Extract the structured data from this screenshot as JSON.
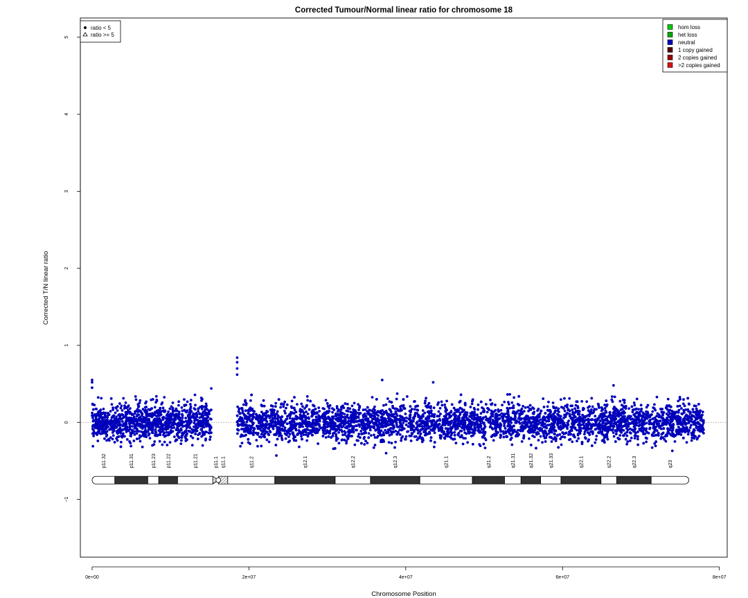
{
  "chart_data": {
    "type": "scatter",
    "title": "Corrected Tumour/Normal linear ratio for chromosome  18",
    "xlabel": "Chromosome Position",
    "ylabel": "Corrected T/N linear ratio",
    "xlim": [
      -1500000,
      81000000
    ],
    "ylim": [
      -1.75,
      5.25
    ],
    "x_ticks": [
      {
        "value": 0,
        "label": "0e+00"
      },
      {
        "value": 20000000,
        "label": "2e+07"
      },
      {
        "value": 40000000,
        "label": "4e+07"
      },
      {
        "value": 60000000,
        "label": "6e+07"
      },
      {
        "value": 80000000,
        "label": "8e+07"
      }
    ],
    "y_ticks": [
      {
        "value": -1,
        "label": "−1"
      },
      {
        "value": 0,
        "label": "0"
      },
      {
        "value": 1,
        "label": "1"
      },
      {
        "value": 2,
        "label": "2"
      },
      {
        "value": 3,
        "label": "3"
      },
      {
        "value": 4,
        "label": "4"
      },
      {
        "value": 5,
        "label": "5"
      }
    ],
    "reference_line": {
      "y": 0,
      "style": "dotted",
      "color": "#888888"
    },
    "colors": {
      "hom_loss": "#00cc00",
      "het_loss": "#00aa00",
      "neutral": "#0000bb",
      "copy1": "#550000",
      "copy2": "#990000",
      "copy3": "#dd1111"
    },
    "legend_shape": {
      "position": "top-left",
      "entries": [
        {
          "label": "ratio < 5",
          "marker": "dot"
        },
        {
          "label": "ratio >= 5",
          "marker": "triangle"
        }
      ]
    },
    "legend_state": {
      "position": "top-right",
      "entries": [
        {
          "label": "hom loss",
          "color": "#00cc00"
        },
        {
          "label": "het loss",
          "color": "#00aa00"
        },
        {
          "label": "neutral",
          "color": "#0000bb"
        },
        {
          "label": "1 copy gained",
          "color": "#550000"
        },
        {
          "label": "2 copies gained",
          "color": "#990000"
        },
        {
          "label": ">2 copies gained",
          "color": "#dd1111"
        }
      ]
    },
    "series": [
      {
        "state": "neutral",
        "color": "#0000bb",
        "segments": [
          {
            "start": 0,
            "end": 15200000,
            "mean": 0.0,
            "sd": 0.12
          },
          {
            "start": 18500000,
            "end": 78000000,
            "mean": 0.0,
            "sd": 0.12
          }
        ],
        "notable_points": [
          {
            "x": 0,
            "y": 0.55
          },
          {
            "x": 0,
            "y": 0.52
          },
          {
            "x": 0,
            "y": 0.45
          },
          {
            "x": 15200000,
            "y": 0.44
          },
          {
            "x": 18500000,
            "y": 0.84
          },
          {
            "x": 18500000,
            "y": 0.78
          },
          {
            "x": 18500000,
            "y": 0.7
          },
          {
            "x": 18500000,
            "y": 0.62
          },
          {
            "x": 37000000,
            "y": 0.55
          },
          {
            "x": 43500000,
            "y": 0.52
          },
          {
            "x": 66500000,
            "y": 0.48
          },
          {
            "x": 23500000,
            "y": -0.43
          },
          {
            "x": 37500000,
            "y": -0.4
          },
          {
            "x": 74000000,
            "y": -0.37
          }
        ]
      }
    ],
    "ideogram": {
      "y": -0.75,
      "bands": [
        {
          "name": "p11.32",
          "start": 0,
          "end": 2900000,
          "stain": "gneg"
        },
        {
          "name": "p11.31",
          "start": 2900000,
          "end": 7100000,
          "stain": "gpos"
        },
        {
          "name": "p11.23",
          "start": 7100000,
          "end": 8500000,
          "stain": "gneg"
        },
        {
          "name": "p11.22",
          "start": 8500000,
          "end": 10900000,
          "stain": "gpos"
        },
        {
          "name": "p11.21",
          "start": 10900000,
          "end": 15400000,
          "stain": "gneg"
        },
        {
          "name": "p11.1",
          "start": 15400000,
          "end": 16100000,
          "stain": "acen"
        },
        {
          "name": "q11.1",
          "start": 16100000,
          "end": 17300000,
          "stain": "stalk"
        },
        {
          "name": "q11.2",
          "start": 17300000,
          "end": 23300000,
          "stain": "gneg"
        },
        {
          "name": "q12.1",
          "start": 23300000,
          "end": 31000000,
          "stain": "gpos"
        },
        {
          "name": "q12.2",
          "start": 31000000,
          "end": 35500000,
          "stain": "gneg"
        },
        {
          "name": "q12.3",
          "start": 35500000,
          "end": 41800000,
          "stain": "gpos"
        },
        {
          "name": "q21.1",
          "start": 41800000,
          "end": 48500000,
          "stain": "gneg"
        },
        {
          "name": "q21.2",
          "start": 48500000,
          "end": 52600000,
          "stain": "gpos"
        },
        {
          "name": "q21.31",
          "start": 52600000,
          "end": 54700000,
          "stain": "gneg"
        },
        {
          "name": "q21.32",
          "start": 54700000,
          "end": 57200000,
          "stain": "gpos"
        },
        {
          "name": "q21.33",
          "start": 57200000,
          "end": 59800000,
          "stain": "gneg"
        },
        {
          "name": "q22.1",
          "start": 59800000,
          "end": 64900000,
          "stain": "gpos"
        },
        {
          "name": "q22.2",
          "start": 64900000,
          "end": 66900000,
          "stain": "gneg"
        },
        {
          "name": "q22.3",
          "start": 66900000,
          "end": 71300000,
          "stain": "gpos"
        },
        {
          "name": "q23",
          "start": 71300000,
          "end": 76100000,
          "stain": "gneg"
        }
      ]
    }
  }
}
